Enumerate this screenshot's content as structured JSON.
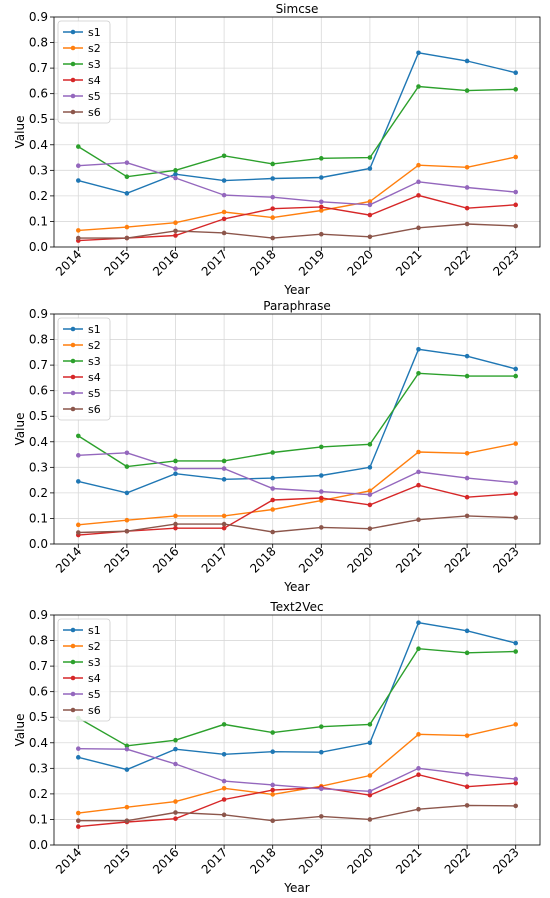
{
  "chart_data": [
    {
      "type": "line",
      "title": "Simcse",
      "xlabel": "Year",
      "ylabel": "Value",
      "x": [
        "2014",
        "2015",
        "2016",
        "2017",
        "2018",
        "2019",
        "2020",
        "2021",
        "2022",
        "2023"
      ],
      "ylim": [
        0,
        0.9
      ],
      "yticks": [
        "0.0",
        "0.1",
        "0.2",
        "0.3",
        "0.4",
        "0.5",
        "0.6",
        "0.7",
        "0.8",
        "0.9"
      ],
      "grid": true,
      "legend": "top-left",
      "series": [
        {
          "name": "s1",
          "color": "#1f77b4",
          "values": [
            0.26,
            0.21,
            0.285,
            0.26,
            0.268,
            0.272,
            0.307,
            0.76,
            0.728,
            0.682
          ]
        },
        {
          "name": "s2",
          "color": "#ff7f0e",
          "values": [
            0.065,
            0.078,
            0.095,
            0.137,
            0.115,
            0.143,
            0.178,
            0.32,
            0.312,
            0.352
          ]
        },
        {
          "name": "s3",
          "color": "#2ca02c",
          "values": [
            0.393,
            0.275,
            0.3,
            0.357,
            0.325,
            0.347,
            0.35,
            0.628,
            0.612,
            0.617
          ]
        },
        {
          "name": "s4",
          "color": "#d62728",
          "values": [
            0.025,
            0.035,
            0.045,
            0.11,
            0.15,
            0.157,
            0.125,
            0.202,
            0.152,
            0.165
          ]
        },
        {
          "name": "s5",
          "color": "#9467bd",
          "values": [
            0.318,
            0.33,
            0.27,
            0.203,
            0.195,
            0.177,
            0.165,
            0.255,
            0.233,
            0.215
          ]
        },
        {
          "name": "s6",
          "color": "#8c564b",
          "values": [
            0.035,
            0.035,
            0.063,
            0.055,
            0.035,
            0.05,
            0.04,
            0.075,
            0.09,
            0.082
          ]
        }
      ]
    },
    {
      "type": "line",
      "title": "Paraphrase",
      "xlabel": "Year",
      "ylabel": "Value",
      "x": [
        "2014",
        "2015",
        "2016",
        "2017",
        "2018",
        "2019",
        "2020",
        "2021",
        "2022",
        "2023"
      ],
      "ylim": [
        0,
        0.9
      ],
      "yticks": [
        "0.0",
        "0.1",
        "0.2",
        "0.3",
        "0.4",
        "0.5",
        "0.6",
        "0.7",
        "0.8",
        "0.9"
      ],
      "grid": true,
      "legend": "top-left",
      "series": [
        {
          "name": "s1",
          "color": "#1f77b4",
          "values": [
            0.245,
            0.2,
            0.275,
            0.253,
            0.258,
            0.268,
            0.3,
            0.762,
            0.735,
            0.685
          ]
        },
        {
          "name": "s2",
          "color": "#ff7f0e",
          "values": [
            0.075,
            0.093,
            0.11,
            0.11,
            0.135,
            0.17,
            0.208,
            0.36,
            0.355,
            0.393
          ]
        },
        {
          "name": "s3",
          "color": "#2ca02c",
          "values": [
            0.423,
            0.303,
            0.325,
            0.325,
            0.358,
            0.38,
            0.39,
            0.668,
            0.657,
            0.657
          ]
        },
        {
          "name": "s4",
          "color": "#d62728",
          "values": [
            0.035,
            0.05,
            0.062,
            0.062,
            0.172,
            0.18,
            0.153,
            0.23,
            0.183,
            0.197
          ]
        },
        {
          "name": "s5",
          "color": "#9467bd",
          "values": [
            0.347,
            0.357,
            0.295,
            0.295,
            0.217,
            0.205,
            0.193,
            0.282,
            0.258,
            0.24
          ]
        },
        {
          "name": "s6",
          "color": "#8c564b",
          "values": [
            0.045,
            0.05,
            0.078,
            0.078,
            0.047,
            0.065,
            0.06,
            0.095,
            0.11,
            0.103
          ]
        }
      ]
    },
    {
      "type": "line",
      "title": "Text2Vec",
      "xlabel": "Year",
      "ylabel": "Value",
      "x": [
        "2014",
        "2015",
        "2016",
        "2017",
        "2018",
        "2019",
        "2020",
        "2021",
        "2022",
        "2023"
      ],
      "ylim": [
        0,
        0.9
      ],
      "yticks": [
        "0.0",
        "0.1",
        "0.2",
        "0.3",
        "0.4",
        "0.5",
        "0.6",
        "0.7",
        "0.8",
        "0.9"
      ],
      "grid": true,
      "legend": "top-left",
      "series": [
        {
          "name": "s1",
          "color": "#1f77b4",
          "values": [
            0.343,
            0.295,
            0.375,
            0.355,
            0.365,
            0.363,
            0.4,
            0.87,
            0.838,
            0.79
          ]
        },
        {
          "name": "s2",
          "color": "#ff7f0e",
          "values": [
            0.125,
            0.148,
            0.17,
            0.222,
            0.198,
            0.23,
            0.272,
            0.433,
            0.428,
            0.472
          ]
        },
        {
          "name": "s3",
          "color": "#2ca02c",
          "values": [
            0.497,
            0.388,
            0.41,
            0.472,
            0.44,
            0.463,
            0.472,
            0.768,
            0.752,
            0.757
          ]
        },
        {
          "name": "s4",
          "color": "#d62728",
          "values": [
            0.072,
            0.09,
            0.103,
            0.178,
            0.215,
            0.225,
            0.195,
            0.275,
            0.228,
            0.242
          ]
        },
        {
          "name": "s5",
          "color": "#9467bd",
          "values": [
            0.377,
            0.375,
            0.317,
            0.25,
            0.235,
            0.22,
            0.21,
            0.3,
            0.277,
            0.258
          ]
        },
        {
          "name": "s6",
          "color": "#8c564b",
          "values": [
            0.095,
            0.095,
            0.127,
            0.118,
            0.095,
            0.112,
            0.1,
            0.14,
            0.155,
            0.153
          ]
        }
      ]
    }
  ]
}
